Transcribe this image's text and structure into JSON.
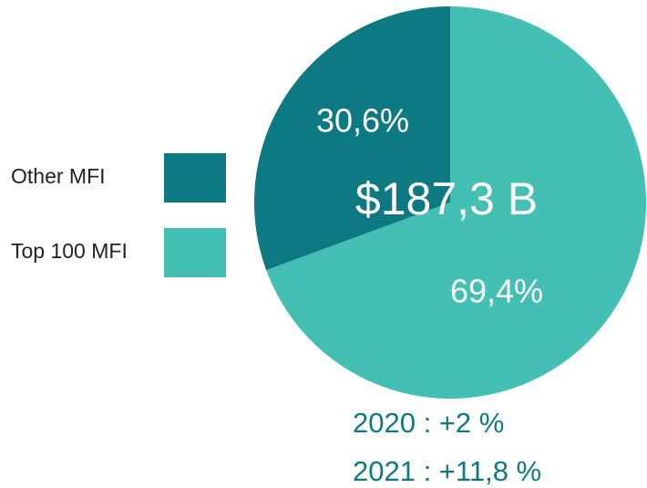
{
  "chart_data": {
    "type": "pie",
    "categories": [
      "Other MFI",
      "Top 100 MFI"
    ],
    "values": [
      30.6,
      69.4
    ],
    "value_labels": [
      "30,6%",
      "69,4%"
    ],
    "colors": [
      "#0d7982",
      "#43bfb3"
    ],
    "center_label": "$187,3 B",
    "annotations": [
      "2020 : +2 %",
      "2021 : +11,8 %"
    ],
    "legend": "left"
  }
}
